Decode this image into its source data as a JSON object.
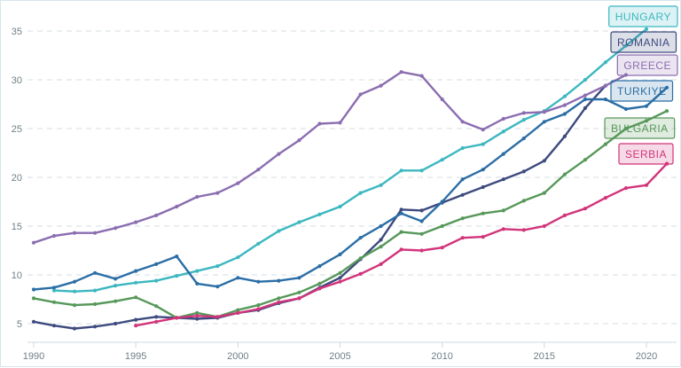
{
  "chart_data": {
    "type": "line",
    "title": "",
    "xlabel": "",
    "ylabel": "",
    "xlim": [
      1990,
      2021
    ],
    "ylim": [
      3.5,
      36.5
    ],
    "x_ticks": [
      1990,
      1995,
      2000,
      2005,
      2010,
      2015,
      2020
    ],
    "y_ticks": [
      5,
      10,
      15,
      20,
      25,
      30,
      35
    ],
    "grid": "horizontal dashed",
    "legend_position": "right, at series end",
    "series": [
      {
        "name": "HUNGARY",
        "color": "#3cb7c0",
        "x": [
          1990,
          1991,
          1992,
          1993,
          1994,
          1995,
          1996,
          1997,
          1998,
          1999,
          2000,
          2001,
          2002,
          2003,
          2004,
          2005,
          2006,
          2007,
          2008,
          2009,
          2010,
          2011,
          2012,
          2013,
          2014,
          2015,
          2016,
          2017,
          2018,
          2019,
          2020,
          2021
        ],
        "values": [
          null,
          8.4,
          8.3,
          8.4,
          8.9,
          9.2,
          9.4,
          9.9,
          10.4,
          10.9,
          11.8,
          13.2,
          14.5,
          15.4,
          16.2,
          17.0,
          18.4,
          19.2,
          20.7,
          20.7,
          21.8,
          23.0,
          23.4,
          24.7,
          25.9,
          26.8,
          28.3,
          30.0,
          31.8,
          33.5,
          35.2,
          null
        ]
      },
      {
        "name": "ROMANIA",
        "color": "#3d4a7e",
        "x": [
          1990,
          1991,
          1992,
          1993,
          1994,
          1995,
          1996,
          1997,
          1998,
          1999,
          2000,
          2001,
          2002,
          2003,
          2004,
          2005,
          2006,
          2007,
          2008,
          2009,
          2010,
          2011,
          2012,
          2013,
          2014,
          2015,
          2016,
          2017,
          2018,
          2019,
          2020,
          2021
        ],
        "values": [
          5.2,
          4.8,
          4.5,
          4.7,
          5.0,
          5.4,
          5.7,
          5.6,
          5.5,
          5.6,
          6.1,
          6.4,
          7.1,
          7.6,
          8.7,
          9.7,
          11.6,
          13.6,
          16.7,
          16.6,
          17.4,
          18.2,
          19.0,
          19.8,
          20.6,
          21.7,
          24.2,
          27.1,
          29.4,
          null,
          null,
          null
        ]
      },
      {
        "name": "GREECE",
        "color": "#8b6db0",
        "x": [
          1990,
          1991,
          1992,
          1993,
          1994,
          1995,
          1996,
          1997,
          1998,
          1999,
          2000,
          2001,
          2002,
          2003,
          2004,
          2005,
          2006,
          2007,
          2008,
          2009,
          2010,
          2011,
          2012,
          2013,
          2014,
          2015,
          2016,
          2017,
          2018,
          2019,
          2020,
          2021
        ],
        "values": [
          13.3,
          14.0,
          14.3,
          14.3,
          14.8,
          15.4,
          16.1,
          17.0,
          18.0,
          18.4,
          19.4,
          20.8,
          22.4,
          23.8,
          25.5,
          25.6,
          28.5,
          29.4,
          30.8,
          30.4,
          28.0,
          25.7,
          24.9,
          26.0,
          26.6,
          26.7,
          27.4,
          28.4,
          29.4,
          30.5,
          null,
          null
        ]
      },
      {
        "name": "TURKIYE",
        "color": "#2b6ea6",
        "x": [
          1990,
          1991,
          1992,
          1993,
          1994,
          1995,
          1996,
          1997,
          1998,
          1999,
          2000,
          2001,
          2002,
          2003,
          2004,
          2005,
          2006,
          2007,
          2008,
          2009,
          2010,
          2011,
          2012,
          2013,
          2014,
          2015,
          2016,
          2017,
          2018,
          2019,
          2020,
          2021
        ],
        "values": [
          8.5,
          8.7,
          9.3,
          10.2,
          9.6,
          10.4,
          11.1,
          11.9,
          9.1,
          8.8,
          9.7,
          9.3,
          9.4,
          9.7,
          10.9,
          12.1,
          13.8,
          15.0,
          16.3,
          15.5,
          17.5,
          19.8,
          20.8,
          22.4,
          24.0,
          25.7,
          26.5,
          28.0,
          28.0,
          27.0,
          27.3,
          29.2
        ]
      },
      {
        "name": "BULGARIA",
        "color": "#56985a",
        "x": [
          1990,
          1991,
          1992,
          1993,
          1994,
          1995,
          1996,
          1997,
          1998,
          1999,
          2000,
          2001,
          2002,
          2003,
          2004,
          2005,
          2006,
          2007,
          2008,
          2009,
          2010,
          2011,
          2012,
          2013,
          2014,
          2015,
          2016,
          2017,
          2018,
          2019,
          2020,
          2021
        ],
        "values": [
          7.6,
          7.2,
          6.9,
          7.0,
          7.3,
          7.7,
          6.8,
          5.6,
          6.1,
          5.7,
          6.4,
          6.9,
          7.6,
          8.2,
          9.1,
          10.2,
          11.7,
          12.9,
          14.4,
          14.2,
          15.0,
          15.8,
          16.3,
          16.6,
          17.6,
          18.4,
          20.3,
          21.8,
          23.4,
          25.0,
          25.8,
          26.8
        ]
      },
      {
        "name": "SERBIA",
        "color": "#d2347a",
        "x": [
          1990,
          1991,
          1992,
          1993,
          1994,
          1995,
          1996,
          1997,
          1998,
          1999,
          2000,
          2001,
          2002,
          2003,
          2004,
          2005,
          2006,
          2007,
          2008,
          2009,
          2010,
          2011,
          2012,
          2013,
          2014,
          2015,
          2016,
          2017,
          2018,
          2019,
          2020,
          2021
        ],
        "values": [
          null,
          null,
          null,
          null,
          null,
          4.8,
          5.2,
          5.6,
          5.8,
          5.7,
          6.1,
          6.5,
          7.2,
          7.6,
          8.6,
          9.3,
          10.1,
          11.1,
          12.6,
          12.5,
          12.8,
          13.8,
          13.9,
          14.7,
          14.6,
          15.0,
          16.1,
          16.8,
          17.9,
          18.9,
          19.2,
          21.4
        ]
      }
    ]
  }
}
